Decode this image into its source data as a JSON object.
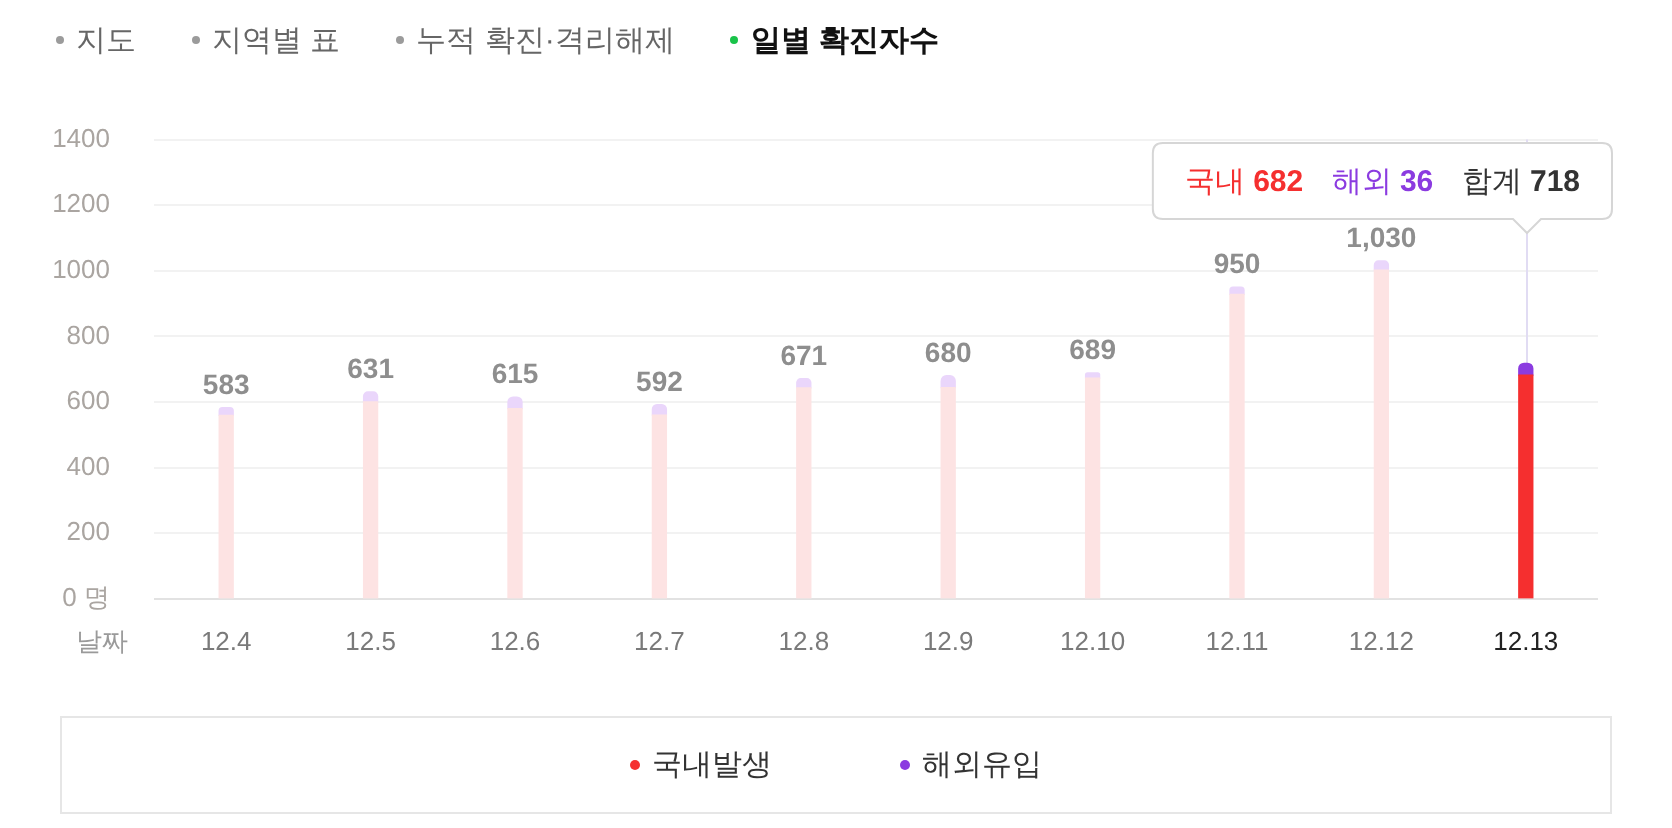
{
  "chart_data": {
    "type": "bar",
    "title": "일별 확진자수",
    "annotations": [
      "지도",
      "지역별 표",
      "누적 확진·격리해제",
      {
        "text": "국내 682 해외 36 합계 718",
        "x": "12.13",
        "y": 718
      }
    ],
    "xlabel": "날짜",
    "categories": [
      "12.4",
      "12.5",
      "12.6",
      "12.7",
      "12.8",
      "12.9",
      "12.10",
      "12.11",
      "12.12",
      "12.13"
    ],
    "stacked": true,
    "series": [
      {
        "name": "국내발생",
        "color": "#f52f2f",
        "colors": [
          "#fde3e3",
          "#fde3e3",
          "#fde3e3",
          "#fde3e3",
          "#fde3e3",
          "#fde3e3",
          "#fde3e3",
          "#fde3e3",
          "#fde3e3",
          "#f52f2f"
        ],
        "values": [
          559,
          600,
          580,
          560,
          643,
          644,
          673,
          928,
          1002,
          682
        ]
      },
      {
        "name": "해외유입",
        "color": "#8b3be0",
        "colors": [
          "#ead6fb",
          "#ead6fb",
          "#ead6fb",
          "#ead6fb",
          "#ead6fb",
          "#ead6fb",
          "#ead6fb",
          "#ead6fb",
          "#ead6fb",
          "#8b3be0"
        ],
        "values": [
          24,
          31,
          35,
          32,
          28,
          36,
          16,
          22,
          28,
          36
        ]
      }
    ],
    "totals": [
      "583",
      "631",
      "615",
      "592",
      "671",
      "680",
      "689",
      "950",
      "1,030",
      null
    ],
    "ylim": [
      0,
      1400
    ],
    "yticks": [
      {
        "value": 0,
        "label": "0 명"
      },
      200,
      400,
      600,
      800,
      1000,
      1200,
      1400
    ],
    "grid": "y",
    "legend": "bottom"
  }
}
